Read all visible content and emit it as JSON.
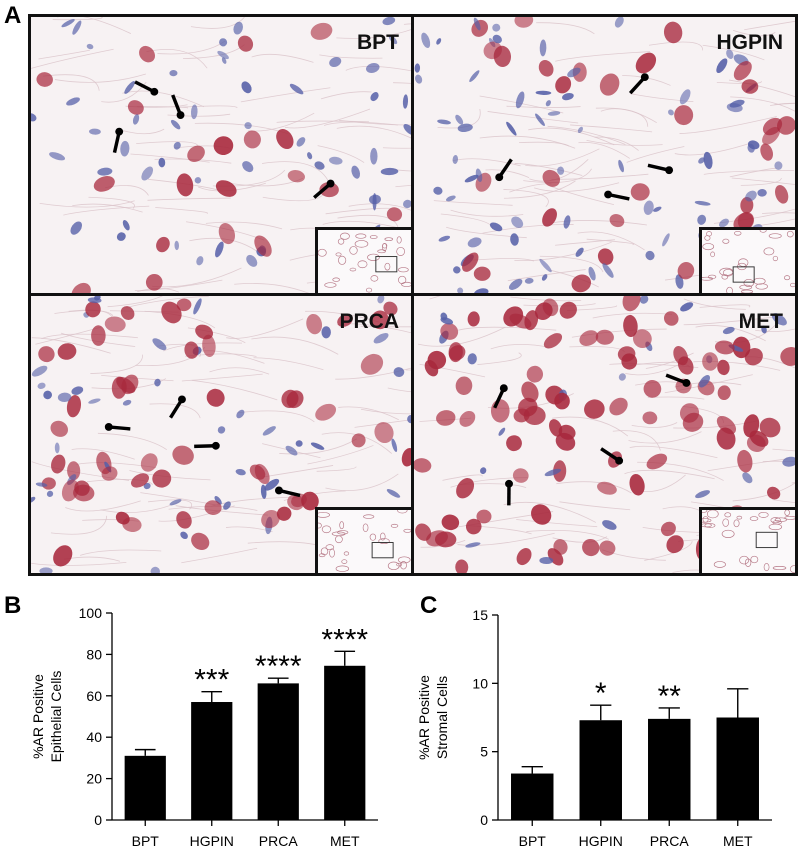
{
  "figure": {
    "panel_labels": [
      "A",
      "B",
      "C"
    ],
    "micrographs": [
      {
        "label": "BPT"
      },
      {
        "label": "HGPIN"
      },
      {
        "label": "PRCA"
      },
      {
        "label": "MET"
      }
    ],
    "colors": {
      "tissue_bg": "#f7f2f3",
      "stroma": "#d9c2c8",
      "nucleus_blue": "#5660a8",
      "nucleus_red": "#a8283c",
      "border": "#111111",
      "bar": "#000000"
    }
  },
  "chart_data": [
    {
      "type": "bar",
      "categories": [
        "BPT",
        "HGPIN",
        "PRCA",
        "MET"
      ],
      "values": [
        31,
        57,
        66,
        74.5
      ],
      "errors": [
        3,
        5,
        2.5,
        7
      ],
      "significance": [
        "",
        "***",
        "****",
        "****"
      ],
      "ylabel": [
        "%AR Positive",
        "Epithelial Cells"
      ],
      "ylim": [
        0,
        100
      ],
      "yticks": [
        0,
        20,
        40,
        60,
        80,
        100
      ],
      "grid": false
    },
    {
      "type": "bar",
      "categories": [
        "BPT",
        "HGPIN",
        "PRCA",
        "MET"
      ],
      "values": [
        3.4,
        7.3,
        7.4,
        7.5
      ],
      "errors": [
        0.5,
        1.1,
        0.8,
        2.1
      ],
      "significance": [
        "",
        "*",
        "**",
        ""
      ],
      "ylabel": [
        "%AR Positive",
        "Stromal Cells"
      ],
      "ylim": [
        0,
        15
      ],
      "yticks": [
        0,
        5,
        10,
        15
      ],
      "grid": false
    }
  ]
}
